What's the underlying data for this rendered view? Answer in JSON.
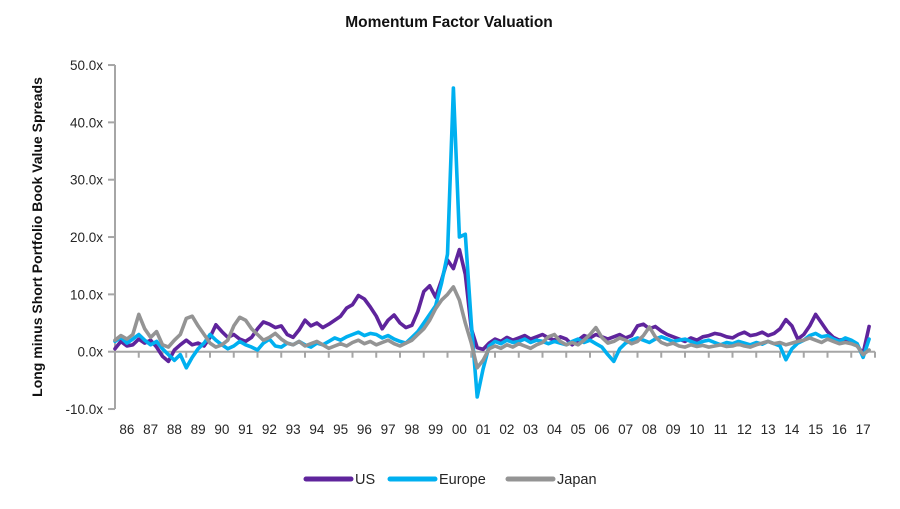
{
  "title": "Momentum Factor Valuation",
  "y_axis": {
    "label": "Long minus Short Portfolio Book Value Spreads",
    "tick_labels": [
      "50.0x",
      "40.0x",
      "30.0x",
      "20.0x",
      "10.0x",
      "0.0x",
      "-10.0x"
    ],
    "tick_values": [
      50,
      40,
      30,
      20,
      10,
      0,
      -10
    ]
  },
  "x_axis": {
    "tick_labels": [
      "86",
      "87",
      "88",
      "89",
      "90",
      "91",
      "92",
      "93",
      "94",
      "95",
      "96",
      "97",
      "98",
      "99",
      "00",
      "01",
      "02",
      "03",
      "04",
      "05",
      "06",
      "07",
      "08",
      "09",
      "10",
      "11",
      "12",
      "13",
      "14",
      "15",
      "16",
      "17"
    ],
    "start_year": 1986,
    "end_year": 2018
  },
  "legend": [
    {
      "label": "US",
      "color": "#5F249C"
    },
    {
      "label": "Europe",
      "color": "#00B0F0"
    },
    {
      "label": "Japan",
      "color": "#949494"
    }
  ],
  "colors": {
    "axis": "#A6A6A6",
    "text": "#262626",
    "background": "#FFFFFF"
  },
  "chart_data": {
    "type": "line",
    "title": "Momentum Factor Valuation",
    "xlabel": "",
    "ylabel": "Long minus Short Portfolio Book Value Spreads",
    "ylim": [
      -10,
      50
    ],
    "xlim": [
      1986,
      2018
    ],
    "grid": false,
    "legend_position": "bottom",
    "x_start": 1986.0,
    "x_step": 0.25,
    "x_unit": "year (quarterly samples)",
    "series": [
      {
        "name": "US",
        "color": "#5F249C",
        "values": [
          0.5,
          1.8,
          1.0,
          1.2,
          2.2,
          1.5,
          2.0,
          0.8,
          -0.8,
          -1.7,
          0.3,
          1.2,
          2.0,
          1.2,
          1.5,
          1.0,
          2.5,
          4.7,
          3.5,
          2.5,
          3.0,
          2.2,
          1.8,
          2.5,
          4.0,
          5.2,
          4.8,
          4.2,
          4.5,
          3.0,
          2.5,
          3.8,
          5.5,
          4.5,
          5.0,
          4.2,
          4.8,
          5.5,
          6.2,
          7.6,
          8.2,
          9.8,
          9.2,
          7.8,
          6.2,
          4.0,
          5.5,
          6.4,
          5.0,
          4.2,
          4.6,
          7.0,
          10.5,
          11.5,
          9.5,
          12.5,
          16.0,
          14.5,
          17.8,
          13.5,
          4.0,
          0.7,
          0.4,
          1.5,
          2.2,
          1.8,
          2.5,
          2.0,
          2.4,
          2.8,
          2.2,
          2.6,
          3.0,
          2.4,
          2.0,
          2.6,
          2.2,
          1.2,
          2.0,
          2.8,
          2.4,
          3.0,
          2.6,
          2.2,
          2.6,
          3.0,
          2.4,
          2.8,
          4.5,
          4.8,
          4.0,
          4.4,
          3.6,
          3.0,
          2.6,
          2.2,
          1.8,
          2.4,
          2.0,
          2.6,
          2.8,
          3.2,
          3.0,
          2.6,
          2.4,
          3.0,
          3.4,
          2.8,
          3.0,
          3.4,
          2.8,
          3.2,
          4.0,
          5.6,
          4.5,
          2.2,
          3.0,
          4.5,
          6.5,
          5.0,
          3.5,
          2.5,
          2.0,
          2.2,
          1.8,
          1.0,
          -0.3,
          4.4
        ]
      },
      {
        "name": "Europe",
        "color": "#00B0F0",
        "values": [
          1.8,
          2.5,
          1.5,
          2.2,
          3.0,
          2.0,
          1.2,
          1.8,
          0.5,
          -0.5,
          -1.5,
          -0.5,
          -2.8,
          -1.0,
          0.5,
          1.5,
          3.0,
          2.0,
          1.2,
          0.5,
          1.0,
          1.8,
          1.2,
          0.8,
          0.3,
          1.5,
          2.2,
          1.0,
          0.8,
          1.5,
          1.2,
          1.8,
          1.2,
          0.8,
          1.5,
          1.2,
          1.8,
          2.4,
          2.0,
          2.6,
          3.0,
          3.4,
          2.8,
          3.2,
          3.0,
          2.4,
          2.8,
          2.2,
          1.8,
          1.5,
          2.5,
          3.5,
          5.0,
          6.5,
          8.0,
          12.0,
          17.0,
          46.0,
          20.0,
          20.5,
          5.0,
          -7.9,
          -3.0,
          1.0,
          1.8,
          1.4,
          2.0,
          1.6,
          1.8,
          2.2,
          1.6,
          2.0,
          1.8,
          1.4,
          1.8,
          1.5,
          1.2,
          1.8,
          2.2,
          1.6,
          2.0,
          1.4,
          0.8,
          -0.5,
          -1.7,
          0.5,
          1.5,
          2.0,
          2.4,
          2.0,
          1.6,
          2.2,
          2.6,
          2.2,
          1.8,
          2.0,
          2.2,
          1.8,
          1.4,
          1.8,
          2.0,
          1.6,
          1.2,
          1.6,
          1.4,
          1.8,
          1.5,
          1.2,
          1.6,
          1.3,
          1.8,
          1.4,
          1.0,
          -1.4,
          0.5,
          1.5,
          2.0,
          2.8,
          3.2,
          2.6,
          2.8,
          2.2,
          1.8,
          2.4,
          2.0,
          1.4,
          -1.0,
          2.2
        ]
      },
      {
        "name": "Japan",
        "color": "#949494",
        "values": [
          2.0,
          2.8,
          2.2,
          3.0,
          6.5,
          4.0,
          2.5,
          3.5,
          1.2,
          0.8,
          2.0,
          3.0,
          5.8,
          6.2,
          4.5,
          3.0,
          1.5,
          0.8,
          1.2,
          2.0,
          4.5,
          6.0,
          5.5,
          4.0,
          3.0,
          2.0,
          2.5,
          3.2,
          2.2,
          1.5,
          1.2,
          1.8,
          1.0,
          1.4,
          1.8,
          1.2,
          0.6,
          1.0,
          1.4,
          1.0,
          1.6,
          2.0,
          1.4,
          1.8,
          1.2,
          1.6,
          2.0,
          1.4,
          1.0,
          1.5,
          2.0,
          3.0,
          4.0,
          5.5,
          7.5,
          9.0,
          10.0,
          11.3,
          9.0,
          5.0,
          1.5,
          -2.8,
          -1.5,
          0.5,
          1.0,
          0.6,
          1.2,
          0.8,
          1.4,
          1.0,
          0.6,
          1.2,
          1.6,
          2.6,
          3.0,
          1.8,
          1.2,
          1.6,
          1.2,
          2.0,
          3.0,
          4.2,
          2.5,
          1.5,
          1.8,
          2.4,
          2.0,
          1.4,
          1.8,
          2.8,
          4.3,
          2.6,
          1.6,
          1.2,
          1.5,
          1.0,
          0.8,
          1.2,
          0.9,
          1.1,
          0.8,
          1.0,
          1.2,
          0.9,
          1.0,
          1.3,
          1.0,
          0.8,
          1.2,
          1.5,
          1.8,
          1.4,
          1.6,
          1.2,
          1.5,
          1.8,
          2.0,
          2.4,
          2.0,
          1.6,
          2.2,
          1.8,
          1.4,
          1.6,
          1.4,
          1.0,
          -0.5,
          0.3
        ]
      }
    ]
  }
}
